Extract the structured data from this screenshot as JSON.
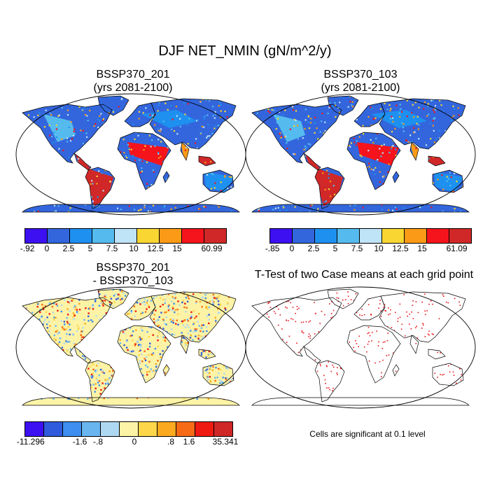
{
  "title": "DJF NET_NMIN (gN/m^2/y)",
  "panels": [
    {
      "title_line1": "BSSP370_201",
      "title_line2": "(yrs 2081-2100)",
      "colorbar": {
        "colors": [
          "#3d10f2",
          "#3366dd",
          "#1e90f0",
          "#55bbee",
          "#bfe3f7",
          "#f9d632",
          "#fb9a16",
          "#f5141c",
          "#d02828"
        ],
        "labels": [
          "-.92",
          "0",
          "2.5",
          "5",
          "7.5",
          "10",
          "12.5",
          "15",
          "60.99"
        ]
      }
    },
    {
      "title_line1": "BSSP370_103",
      "title_line2": "(yrs 2081-2100)",
      "colorbar": {
        "colors": [
          "#3d10f2",
          "#3366dd",
          "#1e90f0",
          "#55bbee",
          "#bfe3f7",
          "#f9d632",
          "#fb9a16",
          "#f5141c",
          "#d02828"
        ],
        "labels": [
          "-.85",
          "0",
          "2.5",
          "5",
          "7.5",
          "10",
          "12.5",
          "15",
          "61.09"
        ]
      }
    },
    {
      "title_line1": "BSSP370_201",
      "title_line2": "- BSSP370_103",
      "colorbar": {
        "colors": [
          "#3d10f2",
          "#2f5bdc",
          "#3d8ef0",
          "#69b5f0",
          "#aed8f2",
          "#fdf3a6",
          "#fdd64a",
          "#fba91e",
          "#f76b16",
          "#ef1a12",
          "#cf2626"
        ],
        "labels": [
          "-11.296",
          "-1.6",
          "-.8",
          "0",
          ".8",
          "1.6",
          "35.341"
        ]
      }
    },
    {
      "title_line1": "T-Test of two Case means at each grid point",
      "title_line2": "",
      "note": "Cells are significant at 0.1 level"
    }
  ]
}
